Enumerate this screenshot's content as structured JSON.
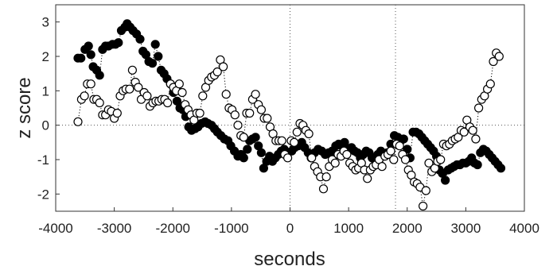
{
  "chart_data": {
    "type": "scatter",
    "xlabel": "seconds",
    "ylabel": "z score",
    "xlim": [
      -4000,
      4000
    ],
    "ylim": [
      -2.5,
      3.5
    ],
    "xticks": [
      -4000,
      -3000,
      -2000,
      -1000,
      0,
      1000,
      2000,
      3000,
      4000
    ],
    "yticks": [
      -2,
      -1,
      0,
      1,
      2,
      3
    ],
    "xtick_labels": [
      "-4000",
      "-3000",
      "-2000",
      "-1000",
      "0",
      "1000",
      "2000",
      "3000",
      "4000"
    ],
    "ytick_labels": [
      "-2",
      "-1",
      "0",
      "1",
      "2",
      "3"
    ],
    "reference_lines": {
      "y": [
        0
      ],
      "x": [
        0,
        1800
      ]
    },
    "grid": false,
    "legend": "none",
    "series": [
      {
        "marker": "filled-circle",
        "color": "#000000",
        "line": "dotted",
        "points": [
          [
            -3620,
            1.95
          ],
          [
            -3570,
            1.95
          ],
          [
            -3500,
            2.2
          ],
          [
            -3440,
            2.3
          ],
          [
            -3400,
            2.05
          ],
          [
            -3360,
            1.7
          ],
          [
            -3300,
            1.6
          ],
          [
            -3250,
            1.45
          ],
          [
            -3200,
            2.2
          ],
          [
            -3150,
            2.3
          ],
          [
            -3100,
            2.3
          ],
          [
            -3030,
            2.35
          ],
          [
            -2980,
            2.35
          ],
          [
            -2930,
            2.4
          ],
          [
            -2880,
            2.75
          ],
          [
            -2820,
            2.85
          ],
          [
            -2780,
            2.95
          ],
          [
            -2730,
            2.85
          ],
          [
            -2680,
            2.75
          ],
          [
            -2620,
            2.65
          ],
          [
            -2560,
            2.5
          ],
          [
            -2510,
            2.15
          ],
          [
            -2460,
            2.05
          ],
          [
            -2410,
            1.85
          ],
          [
            -2350,
            1.8
          ],
          [
            -2300,
            2.35
          ],
          [
            -2250,
            2.0
          ],
          [
            -2200,
            1.6
          ],
          [
            -2150,
            1.5
          ],
          [
            -2100,
            1.35
          ],
          [
            -2040,
            1.2
          ],
          [
            -1990,
            0.95
          ],
          [
            -1930,
            0.7
          ],
          [
            -1880,
            0.5
          ],
          [
            -1830,
            0.45
          ],
          [
            -1780,
            0.25
          ],
          [
            -1730,
            -0.05
          ],
          [
            -1680,
            -0.15
          ],
          [
            -1620,
            -0.1
          ],
          [
            -1570,
            -0.05
          ],
          [
            -1510,
            0.05
          ],
          [
            -1450,
            0.1
          ],
          [
            -1400,
            0.05
          ],
          [
            -1340,
            0.0
          ],
          [
            -1290,
            -0.1
          ],
          [
            -1240,
            -0.2
          ],
          [
            -1180,
            -0.3
          ],
          [
            -1120,
            -0.4
          ],
          [
            -1060,
            -0.45
          ],
          [
            -1010,
            -0.6
          ],
          [
            -950,
            -0.75
          ],
          [
            -890,
            -0.9
          ],
          [
            -840,
            -0.85
          ],
          [
            -790,
            -0.95
          ],
          [
            -730,
            -0.7
          ],
          [
            -690,
            -0.45
          ],
          [
            -640,
            -0.4
          ],
          [
            -590,
            -0.35
          ],
          [
            -540,
            -0.6
          ],
          [
            -490,
            -0.8
          ],
          [
            -450,
            -1.25
          ],
          [
            -400,
            -1.05
          ],
          [
            -350,
            -0.9
          ],
          [
            -300,
            -1.05
          ],
          [
            -250,
            -0.95
          ],
          [
            -200,
            -0.85
          ],
          [
            -150,
            -0.75
          ],
          [
            -100,
            -0.7
          ],
          [
            -50,
            -0.85
          ],
          [
            30,
            -0.75
          ],
          [
            80,
            -0.65
          ],
          [
            140,
            -0.6
          ],
          [
            200,
            -0.5
          ],
          [
            250,
            -0.65
          ],
          [
            310,
            -0.8
          ],
          [
            360,
            -0.95
          ],
          [
            420,
            -0.8
          ],
          [
            480,
            -0.7
          ],
          [
            540,
            -0.75
          ],
          [
            600,
            -0.85
          ],
          [
            660,
            -0.8
          ],
          [
            720,
            -0.75
          ],
          [
            780,
            -0.6
          ],
          [
            830,
            -0.55
          ],
          [
            880,
            -0.6
          ],
          [
            930,
            -0.5
          ],
          [
            990,
            -0.7
          ],
          [
            1050,
            -0.65
          ],
          [
            1100,
            -0.75
          ],
          [
            1150,
            -0.8
          ],
          [
            1200,
            -0.95
          ],
          [
            1250,
            -0.85
          ],
          [
            1300,
            -0.75
          ],
          [
            1350,
            -0.8
          ],
          [
            1400,
            -0.95
          ],
          [
            1450,
            -1.0
          ],
          [
            1500,
            -0.85
          ],
          [
            1550,
            -0.75
          ],
          [
            1610,
            -0.9
          ],
          [
            1660,
            -0.8
          ],
          [
            1720,
            -0.55
          ],
          [
            1780,
            -0.3
          ],
          [
            1840,
            -0.35
          ],
          [
            1890,
            -0.45
          ],
          [
            1940,
            -0.4
          ],
          [
            2000,
            -0.7
          ],
          [
            2050,
            -0.95
          ],
          [
            2100,
            -0.2
          ],
          [
            2150,
            -0.2
          ],
          [
            2200,
            -0.25
          ],
          [
            2250,
            -0.35
          ],
          [
            2300,
            -0.45
          ],
          [
            2350,
            -0.55
          ],
          [
            2400,
            -0.65
          ],
          [
            2450,
            -0.75
          ],
          [
            2500,
            -0.9
          ],
          [
            2550,
            -1.3
          ],
          [
            2600,
            -1.4
          ],
          [
            2650,
            -1.6
          ],
          [
            2700,
            -1.3
          ],
          [
            2750,
            -1.25
          ],
          [
            2800,
            -1.2
          ],
          [
            2850,
            -1.15
          ],
          [
            2900,
            -1.15
          ],
          [
            2950,
            -1.1
          ],
          [
            3000,
            -1.1
          ],
          [
            3050,
            -1.05
          ],
          [
            3100,
            -0.95
          ],
          [
            3150,
            -1.1
          ],
          [
            3200,
            -1.15
          ],
          [
            3250,
            -0.8
          ],
          [
            3300,
            -0.7
          ],
          [
            3350,
            -0.75
          ],
          [
            3400,
            -0.85
          ],
          [
            3450,
            -0.95
          ],
          [
            3500,
            -1.05
          ],
          [
            3550,
            -1.15
          ],
          [
            3600,
            -1.25
          ]
        ]
      },
      {
        "marker": "open-circle",
        "color": "#000000",
        "line": "dotted",
        "points": [
          [
            -3620,
            0.1
          ],
          [
            -3560,
            0.75
          ],
          [
            -3510,
            0.85
          ],
          [
            -3460,
            1.2
          ],
          [
            -3400,
            1.2
          ],
          [
            -3350,
            0.75
          ],
          [
            -3300,
            0.75
          ],
          [
            -3250,
            0.65
          ],
          [
            -3200,
            0.3
          ],
          [
            -3150,
            0.3
          ],
          [
            -3100,
            0.45
          ],
          [
            -3050,
            0.4
          ],
          [
            -3000,
            0.2
          ],
          [
            -2950,
            0.35
          ],
          [
            -2900,
            0.85
          ],
          [
            -2850,
            1.0
          ],
          [
            -2800,
            1.05
          ],
          [
            -2740,
            1.05
          ],
          [
            -2690,
            1.6
          ],
          [
            -2640,
            1.25
          ],
          [
            -2590,
            1.1
          ],
          [
            -2540,
            0.75
          ],
          [
            -2490,
            0.95
          ],
          [
            -2440,
            0.85
          ],
          [
            -2390,
            0.55
          ],
          [
            -2340,
            0.65
          ],
          [
            -2290,
            0.7
          ],
          [
            -2240,
            0.7
          ],
          [
            -2190,
            0.75
          ],
          [
            -2140,
            0.75
          ],
          [
            -2090,
            0.65
          ],
          [
            -2040,
            1.2
          ],
          [
            -1990,
            1.1
          ],
          [
            -1940,
            1.0
          ],
          [
            -1890,
            1.2
          ],
          [
            -1840,
            0.95
          ],
          [
            -1790,
            0.6
          ],
          [
            -1740,
            0.45
          ],
          [
            -1690,
            0.3
          ],
          [
            -1640,
            0.15
          ],
          [
            -1590,
            0.35
          ],
          [
            -1540,
            0.35
          ],
          [
            -1490,
            0.85
          ],
          [
            -1440,
            1.1
          ],
          [
            -1390,
            1.3
          ],
          [
            -1340,
            1.4
          ],
          [
            -1290,
            1.45
          ],
          [
            -1240,
            1.55
          ],
          [
            -1190,
            1.9
          ],
          [
            -1140,
            1.7
          ],
          [
            -1090,
            0.9
          ],
          [
            -1040,
            0.5
          ],
          [
            -990,
            0.45
          ],
          [
            -940,
            0.3
          ],
          [
            -890,
            0.0
          ],
          [
            -840,
            -0.3
          ],
          [
            -790,
            -0.35
          ],
          [
            -740,
            0.35
          ],
          [
            -690,
            0.35
          ],
          [
            -640,
            0.75
          ],
          [
            -590,
            0.9
          ],
          [
            -540,
            0.6
          ],
          [
            -490,
            0.45
          ],
          [
            -440,
            0.2
          ],
          [
            -390,
            0.2
          ],
          [
            -340,
            -0.05
          ],
          [
            -290,
            -0.25
          ],
          [
            -240,
            -0.45
          ],
          [
            -190,
            -0.45
          ],
          [
            -140,
            -0.45
          ],
          [
            -90,
            -0.85
          ],
          [
            -40,
            -0.95
          ],
          [
            20,
            -0.45
          ],
          [
            70,
            -0.5
          ],
          [
            120,
            -0.2
          ],
          [
            170,
            0.05
          ],
          [
            220,
            0.0
          ],
          [
            270,
            -0.15
          ],
          [
            320,
            -0.25
          ],
          [
            370,
            -0.95
          ],
          [
            420,
            -1.2
          ],
          [
            470,
            -1.35
          ],
          [
            520,
            -1.5
          ],
          [
            570,
            -1.85
          ],
          [
            620,
            -1.5
          ],
          [
            670,
            -1.2
          ],
          [
            720,
            -1.0
          ],
          [
            770,
            -1.1
          ],
          [
            820,
            -0.85
          ],
          [
            870,
            -0.9
          ],
          [
            920,
            -0.75
          ],
          [
            970,
            -0.85
          ],
          [
            1020,
            -1.1
          ],
          [
            1070,
            -1.2
          ],
          [
            1120,
            -1.3
          ],
          [
            1170,
            -1.25
          ],
          [
            1220,
            -1.1
          ],
          [
            1270,
            -1.3
          ],
          [
            1320,
            -1.55
          ],
          [
            1370,
            -1.3
          ],
          [
            1420,
            -1.2
          ],
          [
            1470,
            -1.15
          ],
          [
            1520,
            -1.0
          ],
          [
            1570,
            -1.2
          ],
          [
            1620,
            -0.9
          ],
          [
            1670,
            -0.85
          ],
          [
            1720,
            -0.75
          ],
          [
            1770,
            -1.0
          ],
          [
            1820,
            -0.55
          ],
          [
            1870,
            -0.6
          ],
          [
            1920,
            -0.85
          ],
          [
            1970,
            -1.0
          ],
          [
            2020,
            -1.3
          ],
          [
            2070,
            -1.45
          ],
          [
            2120,
            -1.65
          ],
          [
            2170,
            -1.7
          ],
          [
            2220,
            -1.8
          ],
          [
            2270,
            -2.35
          ],
          [
            2320,
            -1.9
          ],
          [
            2370,
            -1.1
          ],
          [
            2420,
            -1.35
          ],
          [
            2470,
            -1.25
          ],
          [
            2520,
            -1.05
          ],
          [
            2570,
            -1.0
          ],
          [
            2620,
            -0.55
          ],
          [
            2670,
            -0.6
          ],
          [
            2720,
            -0.55
          ],
          [
            2770,
            -0.45
          ],
          [
            2820,
            -0.4
          ],
          [
            2870,
            -0.35
          ],
          [
            2920,
            -0.15
          ],
          [
            2970,
            -0.2
          ],
          [
            3020,
            0.15
          ],
          [
            3070,
            -0.05
          ],
          [
            3120,
            -0.15
          ],
          [
            3170,
            -0.4
          ],
          [
            3220,
            0.5
          ],
          [
            3270,
            0.75
          ],
          [
            3320,
            0.85
          ],
          [
            3370,
            1.05
          ],
          [
            3420,
            1.2
          ],
          [
            3470,
            1.85
          ],
          [
            3520,
            2.1
          ],
          [
            3570,
            2.0
          ]
        ]
      }
    ]
  }
}
